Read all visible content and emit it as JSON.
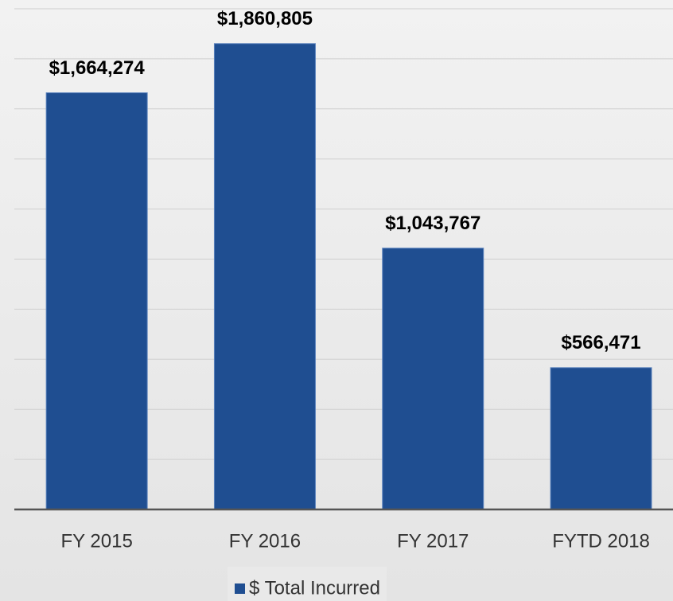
{
  "chart_data": {
    "type": "bar",
    "categories": [
      "FY 2015",
      "FY 2016",
      "FY 2017",
      "FYTD 2018"
    ],
    "series": [
      {
        "name": "$ Total Incurred",
        "color": "#1f4e91",
        "values": [
          1664274,
          1860805,
          1043767,
          566471
        ],
        "value_labels": [
          "$1,664,274",
          "$1,860,805",
          "$1,043,767",
          "$566,471"
        ]
      }
    ],
    "ylim": [
      0,
      2000000
    ],
    "yticks": [
      0,
      200000,
      400000,
      600000,
      800000,
      1000000,
      1200000,
      1400000,
      1600000,
      1800000,
      2000000
    ],
    "grid": true,
    "legend": "bottom"
  }
}
